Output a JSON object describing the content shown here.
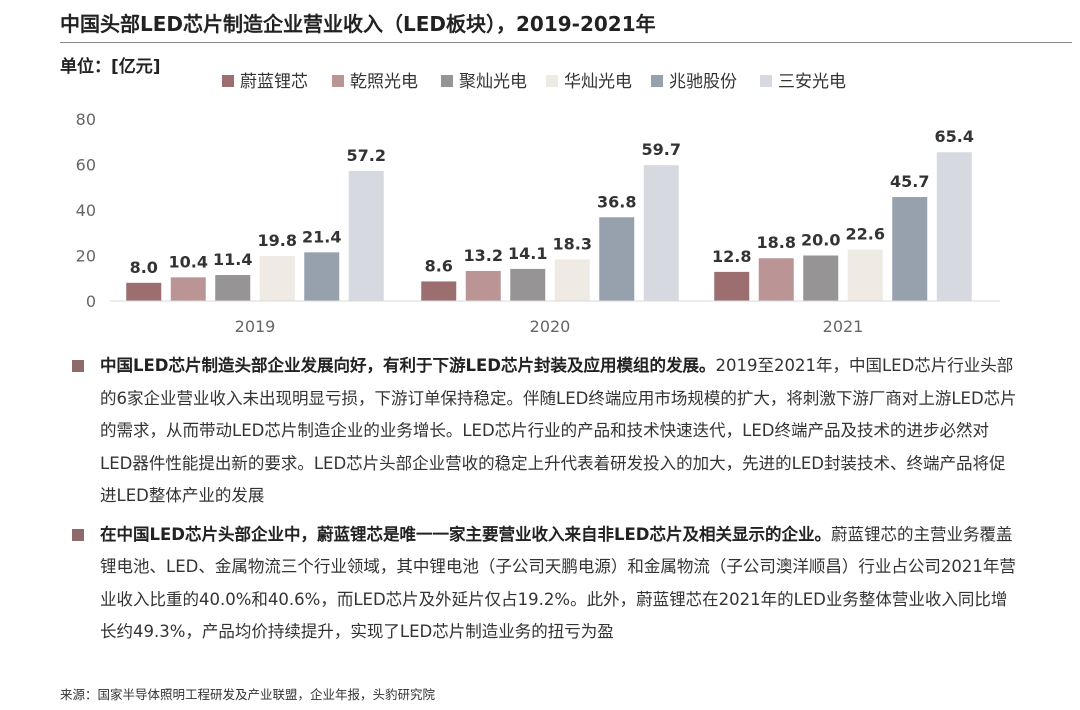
{
  "title": "中国头部LED芯片制造企业营业收入（LED板块），2019-2021年",
  "unit": "单位：[亿元]",
  "chart_data": {
    "type": "bar",
    "categories": [
      "2019",
      "2020",
      "2021"
    ],
    "series": [
      {
        "name": "蔚蓝锂芯",
        "color": "#9c6e70",
        "values": [
          8.0,
          8.6,
          12.8
        ],
        "labels": [
          "8.0",
          "8.6",
          "12.8"
        ]
      },
      {
        "name": "乾照光电",
        "color": "#bb9596",
        "values": [
          10.4,
          13.2,
          18.8
        ],
        "labels": [
          "10.4",
          "13.2",
          "18.8"
        ]
      },
      {
        "name": "聚灿光电",
        "color": "#969495",
        "values": [
          11.4,
          14.1,
          20.0
        ],
        "labels": [
          "11.4",
          "14.1",
          "20.0"
        ]
      },
      {
        "name": "华灿光电",
        "color": "#efebe4",
        "values": [
          19.8,
          18.3,
          22.6
        ],
        "labels": [
          "19.8",
          "18.3",
          "22.6"
        ]
      },
      {
        "name": "兆驰股份",
        "color": "#97a0ad",
        "values": [
          21.4,
          36.8,
          45.7
        ],
        "labels": [
          "21.4",
          "36.8",
          "45.7"
        ]
      },
      {
        "name": "三安光电",
        "color": "#d6d9e0",
        "values": [
          57.2,
          59.7,
          65.4
        ],
        "labels": [
          "57.2",
          "59.7",
          "65.4"
        ]
      }
    ],
    "ylim": [
      0,
      80
    ],
    "yticks": [
      "0",
      "20",
      "40",
      "60",
      "80"
    ],
    "grid": false,
    "legend_position": "top"
  },
  "bullets": [
    {
      "lead": "中国LED芯片制造头部企业发展向好，有利于下游LED芯片封装及应用模组的发展。",
      "text": "2019至2021年，中国LED芯片行业头部的6家企业营业收入未出现明显亏损，下游订单保持稳定。伴随LED终端应用市场规模的扩大，将刺激下游厂商对上游LED芯片的需求，从而带动LED芯片制造企业的业务增长。LED芯片行业的产品和技术快速迭代，LED终端产品及技术的进步必然对LED器件性能提出新的要求。LED芯片头部企业营收的稳定上升代表着研发投入的加大，先进的LED封装技术、终端产品将促进LED整体产业的发展"
    },
    {
      "lead": "在中国LED芯片头部企业中，蔚蓝锂芯是唯一一家主要营业收入来自非LED芯片及相关显示的企业。",
      "text": "蔚蓝锂芯的主营业务覆盖锂电池、LED、金属物流三个行业领域，其中锂电池（子公司天鹏电源）和金属物流（子公司澳洋顺昌）行业占公司2021年营业收入比重的40.0%和40.6%，而LED芯片及外延片仅占19.2%。此外，蔚蓝锂芯在2021年的LED业务整体营业收入同比增长约49.3%，产品均价持续提升，实现了LED芯片制造业务的扭亏为盈"
    }
  ],
  "source": "来源：国家半导体照明工程研发及产业联盟，企业年报，头豹研究院"
}
